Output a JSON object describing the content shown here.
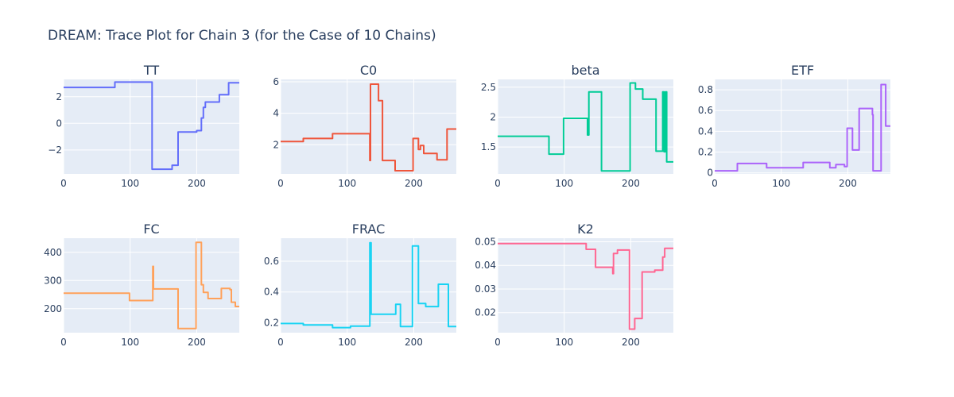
{
  "title": "DREAM: Trace Plot for Chain 3 (for the Case of 10 Chains)",
  "colors": {
    "plot_bg": "#e5ecf6",
    "grid": "#ffffff",
    "text": "#2a3f5f"
  },
  "chart_data": [
    {
      "type": "line",
      "title": "TT",
      "color": "#636efa",
      "xlim": [
        0,
        264
      ],
      "ylim": [
        -3.8,
        3.3
      ],
      "xticks": [
        {
          "v": 0,
          "label": "0"
        },
        {
          "v": 100,
          "label": "100"
        },
        {
          "v": 200,
          "label": "200"
        }
      ],
      "yticks": [
        {
          "v": 2,
          "label": "2"
        },
        {
          "v": 0,
          "label": "0"
        },
        {
          "v": -2,
          "label": "−2"
        }
      ],
      "points": [
        [
          0,
          2.7
        ],
        [
          77,
          2.7
        ],
        [
          77,
          3.1
        ],
        [
          133,
          3.1
        ],
        [
          133,
          -3.45
        ],
        [
          163,
          -3.45
        ],
        [
          163,
          -3.15
        ],
        [
          172,
          -3.15
        ],
        [
          172,
          -0.65
        ],
        [
          200,
          -0.65
        ],
        [
          200,
          -0.55
        ],
        [
          207,
          -0.55
        ],
        [
          207,
          0.4
        ],
        [
          210,
          0.4
        ],
        [
          210,
          1.2
        ],
        [
          213,
          1.2
        ],
        [
          213,
          1.6
        ],
        [
          234,
          1.6
        ],
        [
          234,
          2.15
        ],
        [
          248,
          2.15
        ],
        [
          248,
          3.05
        ],
        [
          264,
          3.05
        ]
      ]
    },
    {
      "type": "line",
      "title": "C0",
      "color": "#ef553b",
      "xlim": [
        0,
        264
      ],
      "ylim": [
        0.15,
        6.15
      ],
      "xticks": [
        {
          "v": 0,
          "label": "0"
        },
        {
          "v": 100,
          "label": "100"
        },
        {
          "v": 200,
          "label": "200"
        }
      ],
      "yticks": [
        {
          "v": 2,
          "label": "2"
        },
        {
          "v": 4,
          "label": "4"
        },
        {
          "v": 6,
          "label": "6"
        }
      ],
      "points": [
        [
          0,
          2.2
        ],
        [
          34,
          2.2
        ],
        [
          34,
          2.4
        ],
        [
          78,
          2.4
        ],
        [
          78,
          2.7
        ],
        [
          134,
          2.7
        ],
        [
          134,
          1.0
        ],
        [
          135,
          1.0
        ],
        [
          135,
          5.85
        ],
        [
          147,
          5.85
        ],
        [
          147,
          4.8
        ],
        [
          153,
          4.8
        ],
        [
          153,
          1.0
        ],
        [
          172,
          1.0
        ],
        [
          172,
          0.35
        ],
        [
          199,
          0.35
        ],
        [
          199,
          2.4
        ],
        [
          207,
          2.4
        ],
        [
          207,
          1.7
        ],
        [
          210,
          1.7
        ],
        [
          210,
          1.95
        ],
        [
          215,
          1.95
        ],
        [
          215,
          1.45
        ],
        [
          235,
          1.45
        ],
        [
          235,
          1.05
        ],
        [
          250,
          1.05
        ],
        [
          250,
          3.0
        ],
        [
          264,
          3.0
        ]
      ]
    },
    {
      "type": "line",
      "title": "beta",
      "color": "#00cc96",
      "xlim": [
        0,
        264
      ],
      "ylim": [
        1.05,
        2.63
      ],
      "xticks": [
        {
          "v": 0,
          "label": "0"
        },
        {
          "v": 100,
          "label": "100"
        },
        {
          "v": 200,
          "label": "200"
        }
      ],
      "yticks": [
        {
          "v": 1.5,
          "label": "1.5"
        },
        {
          "v": 2,
          "label": "2"
        },
        {
          "v": 2.5,
          "label": "2.5"
        }
      ],
      "points": [
        [
          0,
          1.68
        ],
        [
          77,
          1.68
        ],
        [
          77,
          1.38
        ],
        [
          99,
          1.38
        ],
        [
          99,
          1.98
        ],
        [
          135,
          1.98
        ],
        [
          135,
          1.7
        ],
        [
          137,
          1.7
        ],
        [
          137,
          2.42
        ],
        [
          156,
          2.42
        ],
        [
          156,
          1.1
        ],
        [
          199,
          1.1
        ],
        [
          199,
          2.57
        ],
        [
          207,
          2.57
        ],
        [
          207,
          2.47
        ],
        [
          218,
          2.47
        ],
        [
          218,
          2.3
        ],
        [
          238,
          2.3
        ],
        [
          238,
          1.43
        ],
        [
          248,
          1.43
        ],
        [
          248,
          2.42
        ],
        [
          250,
          2.42
        ],
        [
          250,
          1.42
        ],
        [
          252,
          1.42
        ],
        [
          252,
          2.42
        ],
        [
          254,
          2.42
        ],
        [
          254,
          1.25
        ],
        [
          264,
          1.25
        ]
      ]
    },
    {
      "type": "line",
      "title": "ETF",
      "color": "#ab63fa",
      "xlim": [
        0,
        264
      ],
      "ylim": [
        -0.01,
        0.9
      ],
      "xticks": [
        {
          "v": 0,
          "label": "0"
        },
        {
          "v": 100,
          "label": "100"
        },
        {
          "v": 200,
          "label": "200"
        }
      ],
      "yticks": [
        {
          "v": 0,
          "label": "0"
        },
        {
          "v": 0.2,
          "label": "0.2"
        },
        {
          "v": 0.4,
          "label": "0.4"
        },
        {
          "v": 0.6,
          "label": "0.6"
        },
        {
          "v": 0.8,
          "label": "0.8"
        }
      ],
      "points": [
        [
          0,
          0.02
        ],
        [
          34,
          0.02
        ],
        [
          34,
          0.09
        ],
        [
          78,
          0.09
        ],
        [
          78,
          0.05
        ],
        [
          133,
          0.05
        ],
        [
          133,
          0.1
        ],
        [
          173,
          0.1
        ],
        [
          173,
          0.05
        ],
        [
          182,
          0.05
        ],
        [
          182,
          0.08
        ],
        [
          195,
          0.08
        ],
        [
          195,
          0.06
        ],
        [
          199,
          0.06
        ],
        [
          199,
          0.43
        ],
        [
          207,
          0.43
        ],
        [
          207,
          0.22
        ],
        [
          217,
          0.22
        ],
        [
          217,
          0.62
        ],
        [
          237,
          0.62
        ],
        [
          237,
          0.56
        ],
        [
          238,
          0.56
        ],
        [
          238,
          0.02
        ],
        [
          250,
          0.02
        ],
        [
          250,
          0.85
        ],
        [
          257,
          0.85
        ],
        [
          257,
          0.45
        ],
        [
          264,
          0.45
        ]
      ]
    },
    {
      "type": "line",
      "title": "FC",
      "color": "#ffa15a",
      "xlim": [
        0,
        264
      ],
      "ylim": [
        115,
        450
      ],
      "xticks": [
        {
          "v": 0,
          "label": "0"
        },
        {
          "v": 100,
          "label": "100"
        },
        {
          "v": 200,
          "label": "200"
        }
      ],
      "yticks": [
        {
          "v": 200,
          "label": "200"
        },
        {
          "v": 300,
          "label": "300"
        },
        {
          "v": 400,
          "label": "400"
        }
      ],
      "points": [
        [
          0,
          255
        ],
        [
          99,
          255
        ],
        [
          99,
          229
        ],
        [
          134,
          229
        ],
        [
          134,
          350
        ],
        [
          135,
          350
        ],
        [
          135,
          270
        ],
        [
          172,
          270
        ],
        [
          172,
          130
        ],
        [
          199,
          130
        ],
        [
          199,
          435
        ],
        [
          207,
          435
        ],
        [
          207,
          285
        ],
        [
          210,
          285
        ],
        [
          210,
          258
        ],
        [
          217,
          258
        ],
        [
          217,
          236
        ],
        [
          237,
          236
        ],
        [
          237,
          272
        ],
        [
          250,
          272
        ],
        [
          250,
          268
        ],
        [
          252,
          268
        ],
        [
          252,
          223
        ],
        [
          258,
          223
        ],
        [
          258,
          208
        ],
        [
          264,
          208
        ]
      ]
    },
    {
      "type": "line",
      "title": "FRAC",
      "color": "#19d3f3",
      "xlim": [
        0,
        264
      ],
      "ylim": [
        0.135,
        0.75
      ],
      "xticks": [
        {
          "v": 0,
          "label": "0"
        },
        {
          "v": 100,
          "label": "100"
        },
        {
          "v": 200,
          "label": "200"
        }
      ],
      "yticks": [
        {
          "v": 0.2,
          "label": "0.2"
        },
        {
          "v": 0.4,
          "label": "0.4"
        },
        {
          "v": 0.6,
          "label": "0.6"
        }
      ],
      "points": [
        [
          0,
          0.195
        ],
        [
          34,
          0.195
        ],
        [
          34,
          0.185
        ],
        [
          78,
          0.185
        ],
        [
          78,
          0.168
        ],
        [
          105,
          0.168
        ],
        [
          105,
          0.178
        ],
        [
          134,
          0.178
        ],
        [
          134,
          0.72
        ],
        [
          136,
          0.72
        ],
        [
          136,
          0.255
        ],
        [
          173,
          0.255
        ],
        [
          173,
          0.32
        ],
        [
          180,
          0.32
        ],
        [
          180,
          0.175
        ],
        [
          198,
          0.175
        ],
        [
          198,
          0.7
        ],
        [
          207,
          0.7
        ],
        [
          207,
          0.325
        ],
        [
          218,
          0.325
        ],
        [
          218,
          0.305
        ],
        [
          237,
          0.305
        ],
        [
          237,
          0.45
        ],
        [
          252,
          0.45
        ],
        [
          252,
          0.175
        ],
        [
          264,
          0.175
        ]
      ]
    },
    {
      "type": "line",
      "title": "K2",
      "color": "#ff6692",
      "xlim": [
        0,
        264
      ],
      "ylim": [
        0.0115,
        0.0515
      ],
      "xticks": [
        {
          "v": 0,
          "label": "0"
        },
        {
          "v": 100,
          "label": "100"
        },
        {
          "v": 200,
          "label": "200"
        }
      ],
      "yticks": [
        {
          "v": 0.02,
          "label": "0.02"
        },
        {
          "v": 0.03,
          "label": "0.03"
        },
        {
          "v": 0.04,
          "label": "0.04"
        },
        {
          "v": 0.05,
          "label": "0.05"
        }
      ],
      "points": [
        [
          0,
          0.0492
        ],
        [
          133,
          0.0492
        ],
        [
          133,
          0.0468
        ],
        [
          147,
          0.0468
        ],
        [
          147,
          0.0392
        ],
        [
          173,
          0.0392
        ],
        [
          173,
          0.0365
        ],
        [
          174,
          0.0365
        ],
        [
          174,
          0.045
        ],
        [
          180,
          0.045
        ],
        [
          180,
          0.0465
        ],
        [
          198,
          0.0465
        ],
        [
          198,
          0.013
        ],
        [
          206,
          0.013
        ],
        [
          206,
          0.0175
        ],
        [
          217,
          0.0175
        ],
        [
          217,
          0.0372
        ],
        [
          236,
          0.0372
        ],
        [
          236,
          0.038
        ],
        [
          248,
          0.038
        ],
        [
          248,
          0.0435
        ],
        [
          251,
          0.0435
        ],
        [
          251,
          0.0472
        ],
        [
          264,
          0.0472
        ]
      ]
    }
  ]
}
